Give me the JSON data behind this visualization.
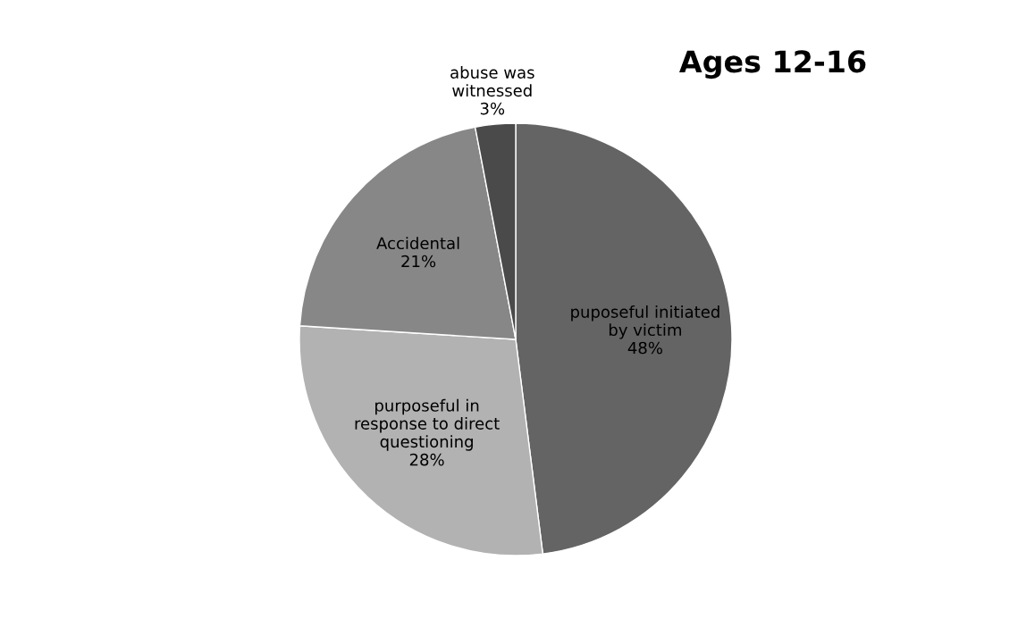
{
  "chart_data": {
    "type": "pie",
    "title": "Ages 12-16",
    "categories": [
      "puposeful initiated\nby victim",
      "purposeful in\nresponse to direct\nquestioning",
      "Accidental",
      "abuse was\nwitnessed"
    ],
    "values": [
      48,
      28,
      21,
      3
    ],
    "value_labels": [
      "48%",
      "28%",
      "21%",
      "3%"
    ],
    "colors": [
      "#646464",
      "#b2b2b2",
      "#878787",
      "#4a4a4a"
    ],
    "legend": false
  }
}
